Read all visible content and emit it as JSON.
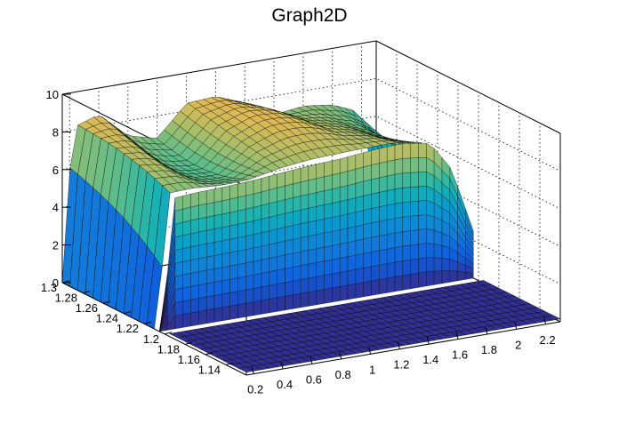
{
  "chart_data": {
    "type": "surface",
    "title": "Graph2D",
    "x_ticks": [
      "0.2",
      "0.4",
      "0.6",
      "0.8",
      "1",
      "1.2",
      "1.4",
      "1.6",
      "1.8",
      "2",
      "2.2"
    ],
    "y_ticks": [
      "1.14",
      "1.16",
      "1.18",
      "1.2",
      "1.22",
      "1.24",
      "1.26",
      "1.28",
      "1.3"
    ],
    "z_ticks": [
      "0",
      "2",
      "4",
      "6",
      "8",
      "10"
    ],
    "xlim": [
      0.15,
      2.3
    ],
    "ylim": [
      1.12,
      1.3
    ],
    "zlim": [
      0,
      10
    ],
    "grid": true,
    "colormap": "parula",
    "colors": {
      "low": "#352a87",
      "mid": "#2ab0a0",
      "high": "#f9fb0e"
    },
    "surface_profiles": {
      "x": [
        0.15,
        0.25,
        0.4,
        0.6,
        0.8,
        1.0,
        1.2,
        1.4,
        1.6,
        1.8,
        2.0,
        2.15,
        2.3
      ],
      "front_ridge_height": [
        0,
        6.9,
        7.0,
        7.1,
        7.2,
        7.3,
        7.4,
        7.5,
        7.7,
        7.8,
        7.6,
        6.0,
        2.5
      ],
      "back_profile_height": [
        7.4,
        8.2,
        8.6,
        7.2,
        6.8,
        8.4,
        8.5,
        7.9,
        7.0,
        7.2,
        7.0,
        6.5,
        3.0
      ],
      "front_edge_height": [
        0,
        0,
        0,
        0,
        0,
        0,
        0,
        0,
        0,
        0,
        0,
        0,
        0
      ]
    }
  }
}
